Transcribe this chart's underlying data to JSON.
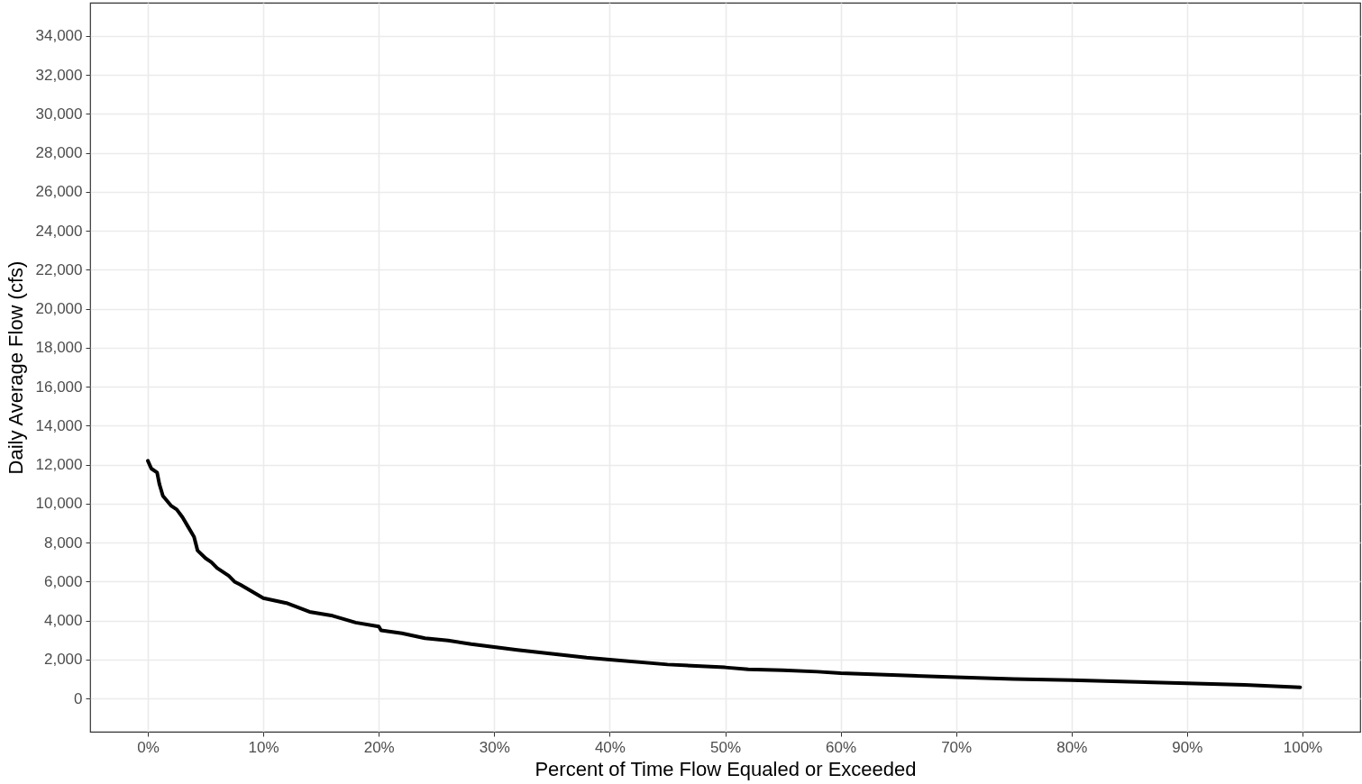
{
  "chart_data": {
    "type": "line",
    "xlabel": "Percent of Time Flow Equaled or Exceeded",
    "ylabel": "Daily Average Flow (cfs)",
    "x": [
      0,
      0.3,
      0.8,
      1.0,
      1.3,
      2,
      2.5,
      3,
      3.5,
      4,
      4.3,
      5,
      5.5,
      6,
      7,
      7.5,
      8,
      9,
      10,
      12,
      14,
      16,
      18,
      20,
      20.2,
      22,
      24,
      26,
      28,
      30,
      32,
      35,
      38,
      40,
      45,
      50,
      52,
      55,
      58,
      60,
      65,
      70,
      75,
      80,
      85,
      90,
      95,
      99.8
    ],
    "series": [
      {
        "color": "#000000",
        "values": [
          12200,
          11800,
          11600,
          11000,
          10400,
          9900,
          9700,
          9300,
          8800,
          8300,
          7600,
          7200,
          7000,
          6700,
          6300,
          6000,
          5850,
          5500,
          5150,
          4900,
          4450,
          4250,
          3900,
          3700,
          3500,
          3350,
          3100,
          2980,
          2800,
          2650,
          2500,
          2300,
          2100,
          2000,
          1750,
          1600,
          1500,
          1450,
          1380,
          1300,
          1200,
          1100,
          1000,
          950,
          870,
          780,
          700,
          580
        ]
      }
    ],
    "xlim": [
      -5,
      105
    ],
    "ylim": [
      -1700,
      35700
    ],
    "xticks": [
      {
        "value": 0,
        "label": "0%"
      },
      {
        "value": 10,
        "label": "10%"
      },
      {
        "value": 20,
        "label": "20%"
      },
      {
        "value": 30,
        "label": "30%"
      },
      {
        "value": 40,
        "label": "40%"
      },
      {
        "value": 50,
        "label": "50%"
      },
      {
        "value": 60,
        "label": "60%"
      },
      {
        "value": 70,
        "label": "70%"
      },
      {
        "value": 80,
        "label": "80%"
      },
      {
        "value": 90,
        "label": "90%"
      },
      {
        "value": 100,
        "label": "100%"
      }
    ],
    "yticks": [
      0,
      {
        "value": 2000,
        "label": "2,000"
      },
      {
        "value": 4000,
        "label": "4,000"
      },
      {
        "value": 6000,
        "label": "6,000"
      },
      {
        "value": 8000,
        "label": "8,000"
      },
      {
        "value": 10000,
        "label": "10,000"
      },
      {
        "value": 12000,
        "label": "12,000"
      },
      {
        "value": 14000,
        "label": "14,000"
      },
      {
        "value": 16000,
        "label": "16,000"
      },
      {
        "value": 18000,
        "label": "18,000"
      },
      {
        "value": 20000,
        "label": "20,000"
      },
      {
        "value": 22000,
        "label": "22,000"
      },
      {
        "value": 24000,
        "label": "24,000"
      },
      {
        "value": 26000,
        "label": "26,000"
      },
      {
        "value": 28000,
        "label": "28,000"
      },
      {
        "value": 30000,
        "label": "30,000"
      },
      {
        "value": 32000,
        "label": "32,000"
      },
      {
        "value": 34000,
        "label": "34,000"
      }
    ],
    "grid": true,
    "line_style": "solid",
    "marker": "none"
  }
}
